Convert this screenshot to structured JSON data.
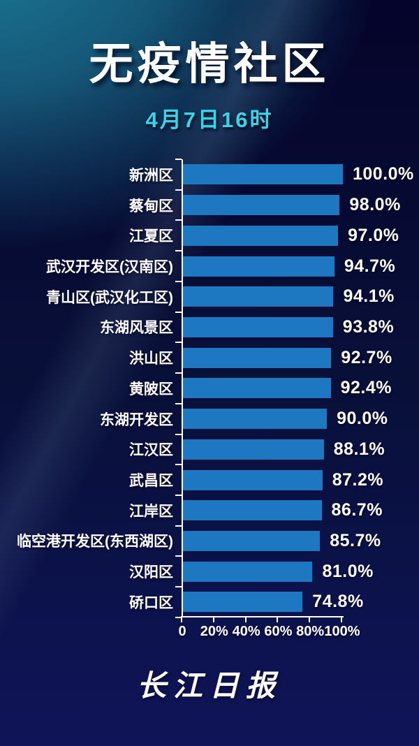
{
  "title": "无疫情社区",
  "subtitle": "4月7日16时",
  "footer_logo": "长江日报",
  "colors": {
    "bar": "#1d77c1",
    "title_text": "#ffffff",
    "subtitle_text": "#3ad6e8",
    "axis": "#ffffff",
    "bg_teal": "#1a7290",
    "bg_dark_navy": "#05042a",
    "bg_bottom_blue": "#0f1458"
  },
  "chart_data": {
    "type": "bar",
    "orientation": "horizontal",
    "title": "无疫情社区",
    "subtitle": "4月7日16时",
    "categories": [
      "新洲区",
      "蔡甸区",
      "江夏区",
      "武汉开发区(汉南区)",
      "青山区(武汉化工区)",
      "东湖风景区",
      "洪山区",
      "黄陂区",
      "东湖开发区",
      "江汉区",
      "武昌区",
      "江岸区",
      "临空港开发区(东西湖区)",
      "汉阳区",
      "硚口区"
    ],
    "values": [
      100.0,
      98.0,
      97.0,
      94.7,
      94.1,
      93.8,
      92.7,
      92.4,
      90.0,
      88.1,
      87.2,
      86.7,
      85.7,
      81.0,
      74.8
    ],
    "value_labels": [
      "100.0%",
      "98.0%",
      "97.0%",
      "94.7%",
      "94.1%",
      "93.8%",
      "92.7%",
      "92.4%",
      "90.0%",
      "88.1%",
      "87.2%",
      "86.7%",
      "85.7%",
      "81.0%",
      "74.8%"
    ],
    "x_ticks": [
      "0",
      "20%",
      "40%",
      "60%",
      "80%",
      "100%"
    ],
    "xlim": [
      0,
      100
    ],
    "grid": false,
    "legend": false
  }
}
